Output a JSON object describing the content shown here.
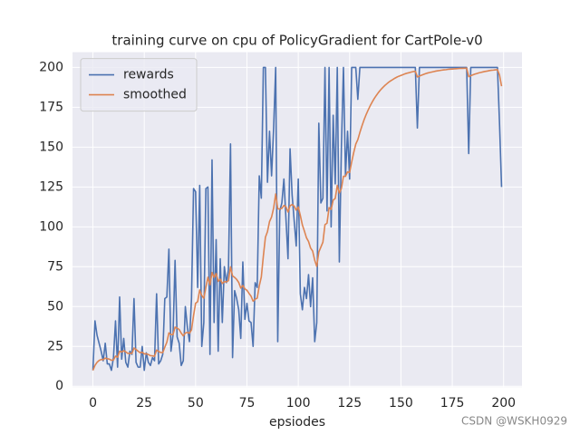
{
  "chart_data": {
    "type": "line",
    "title": "training curve on cpu of PolicyGradient for CartPole-v0",
    "x_label": "epsiodes",
    "watermark": "CSDN @WSKH0929",
    "x": [
      0,
      1,
      2,
      3,
      4,
      5,
      6,
      7,
      8,
      9,
      10,
      11,
      12,
      13,
      14,
      15,
      16,
      17,
      18,
      19,
      20,
      21,
      22,
      23,
      24,
      25,
      26,
      27,
      28,
      29,
      30,
      31,
      32,
      33,
      34,
      35,
      36,
      37,
      38,
      39,
      40,
      41,
      42,
      43,
      44,
      45,
      46,
      47,
      48,
      49,
      50,
      51,
      52,
      53,
      54,
      55,
      56,
      57,
      58,
      59,
      60,
      61,
      62,
      63,
      64,
      65,
      66,
      67,
      68,
      69,
      70,
      71,
      72,
      73,
      74,
      75,
      76,
      77,
      78,
      79,
      80,
      81,
      82,
      83,
      84,
      85,
      86,
      87,
      88,
      89,
      90,
      91,
      92,
      93,
      94,
      95,
      96,
      97,
      98,
      99,
      100,
      101,
      102,
      103,
      104,
      105,
      106,
      107,
      108,
      109,
      110,
      111,
      112,
      113,
      114,
      115,
      116,
      117,
      118,
      119,
      120,
      121,
      122,
      123,
      124,
      125,
      126,
      127,
      128,
      129,
      130,
      131,
      132,
      133,
      134,
      135,
      136,
      137,
      138,
      139,
      140,
      141,
      142,
      143,
      144,
      145,
      146,
      147,
      148,
      149,
      150,
      151,
      152,
      153,
      154,
      155,
      156,
      157,
      158,
      159,
      160,
      161,
      162,
      163,
      164,
      165,
      166,
      167,
      168,
      169,
      170,
      171,
      172,
      173,
      174,
      175,
      176,
      177,
      178,
      179,
      180,
      181,
      182,
      183,
      184,
      185,
      186,
      187,
      188,
      189,
      190,
      191,
      192,
      193,
      194,
      195,
      196,
      197,
      198,
      199
    ],
    "series": [
      {
        "name": "rewards",
        "color": "#4c72b0",
        "values": [
          10,
          41,
          32,
          27,
          22,
          16,
          27,
          14,
          14,
          10,
          18,
          41,
          12,
          56,
          17,
          30,
          15,
          12,
          22,
          20,
          55,
          15,
          12,
          12,
          25,
          10,
          21,
          15,
          13,
          18,
          16,
          58,
          14,
          16,
          20,
          55,
          56,
          86,
          22,
          32,
          79,
          31,
          27,
          13,
          16,
          50,
          37,
          28,
          55,
          124,
          122,
          62,
          126,
          25,
          40,
          124,
          125,
          20,
          142,
          40,
          92,
          22,
          80,
          40,
          75,
          65,
          73,
          152,
          18,
          60,
          55,
          48,
          30,
          78,
          42,
          52,
          41,
          40,
          25,
          65,
          62,
          132,
          118,
          200,
          200,
          128,
          160,
          132,
          162,
          200,
          28,
          110,
          115,
          130,
          105,
          80,
          149,
          120,
          104,
          88,
          130,
          58,
          48,
          62,
          55,
          70,
          50,
          68,
          28,
          40,
          165,
          115,
          118,
          200,
          110,
          200,
          100,
          170,
          127,
          200,
          78,
          150,
          200,
          132,
          160,
          130,
          200,
          200,
          200,
          180,
          200,
          200,
          200,
          200,
          200,
          200,
          200,
          200,
          200,
          200,
          200,
          200,
          200,
          200,
          200,
          200,
          200,
          200,
          200,
          200,
          200,
          200,
          200,
          200,
          200,
          200,
          200,
          200,
          162,
          200,
          200,
          200,
          200,
          200,
          200,
          200,
          200,
          200,
          200,
          200,
          200,
          200,
          200,
          200,
          200,
          200,
          200,
          200,
          200,
          200,
          200,
          200,
          200,
          146,
          200,
          200,
          200,
          200,
          200,
          200,
          200,
          200,
          200,
          200,
          200,
          200,
          200,
          200,
          165,
          125
        ]
      },
      {
        "name": "smoothed",
        "color": "#dd8452",
        "values": [
          10,
          13.1,
          15.0,
          16.2,
          16.8,
          16.7,
          17.7,
          17.3,
          17.0,
          16.3,
          16.5,
          18.9,
          18.2,
          22.0,
          21.5,
          22.3,
          21.6,
          20.6,
          20.7,
          20.6,
          24.0,
          23.1,
          22.0,
          21.0,
          21.4,
          20.3,
          20.4,
          19.9,
          19.2,
          19.1,
          18.8,
          22.7,
          21.8,
          21.2,
          21.1,
          24.5,
          27.7,
          33.5,
          32.4,
          32.4,
          37.1,
          36.5,
          35.6,
          33.3,
          31.6,
          33.4,
          33.8,
          33.2,
          35.4,
          44.3,
          52.1,
          53.1,
          60.4,
          56.9,
          55.2,
          62.1,
          68.4,
          63.6,
          71.4,
          68.3,
          70.7,
          65.8,
          67.2,
          64.5,
          65.6,
          65.5,
          66.3,
          74.9,
          69.2,
          68.3,
          67.0,
          65.1,
          61.6,
          63.2,
          61.1,
          60.2,
          58.3,
          56.5,
          53.4,
          54.6,
          55.3,
          63.0,
          68.5,
          81.7,
          93.5,
          97.0,
          103.3,
          106.2,
          111.8,
          120.6,
          111.3,
          111.2,
          111.6,
          113.4,
          112.6,
          109.3,
          113.3,
          114.0,
          113.0,
          110.5,
          112.5,
          107.1,
          101.2,
          97.3,
          93.1,
          90.8,
          86.7,
          84.8,
          79.1,
          75.2,
          84.2,
          87.3,
          90.4,
          101.4,
          102.3,
          112.1,
          110.9,
          116.8,
          117.8,
          126.0,
          121.2,
          124.1,
          131.7,
          131.7,
          134.5,
          134.1,
          140.7,
          146.6,
          151.9,
          154.7,
          159.2,
          163.3,
          167.0,
          170.3,
          173.2,
          175.9,
          178.3,
          180.5,
          182.4,
          184.2,
          185.8,
          187.2,
          188.5,
          189.6,
          190.7,
          191.6,
          192.4,
          193.2,
          193.9,
          194.5,
          195.0,
          195.5,
          196.0,
          196.4,
          196.7,
          197.1,
          197.4,
          197.6,
          194.0,
          194.6,
          195.1,
          195.6,
          196.1,
          196.5,
          196.8,
          197.1,
          197.4,
          197.7,
          197.9,
          198.1,
          198.3,
          198.5,
          198.6,
          198.8,
          198.9,
          199.0,
          199.1,
          199.2,
          199.3,
          199.4,
          199.4,
          199.5,
          199.5,
          194.2,
          194.8,
          195.3,
          195.8,
          196.2,
          196.6,
          196.9,
          197.2,
          197.5,
          197.7,
          198.0,
          198.2,
          198.3,
          198.5,
          198.6,
          195.2,
          188.2
        ]
      }
    ],
    "xlim": [
      -9.95,
      208.95
    ],
    "ylim": [
      -0.55,
      209.55
    ],
    "xticks": [
      0,
      25,
      50,
      75,
      100,
      125,
      150,
      175,
      200
    ],
    "yticks": [
      0,
      25,
      50,
      75,
      100,
      125,
      150,
      175,
      200
    ],
    "grid": true,
    "legend": "upper left",
    "background": "#eaeaf2"
  }
}
